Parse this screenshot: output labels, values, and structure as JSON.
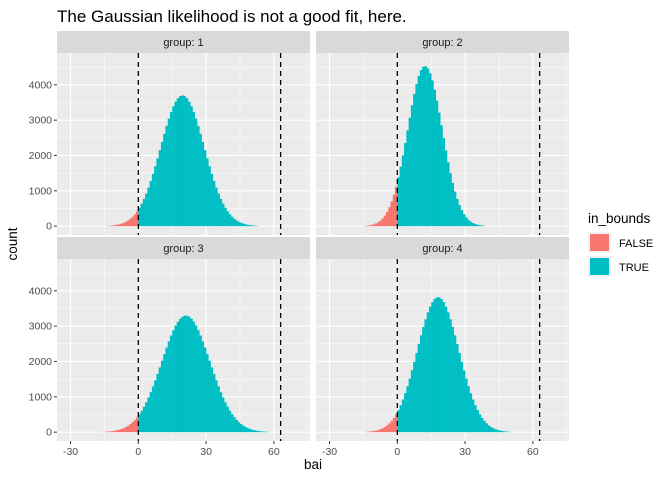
{
  "chart_data": {
    "type": "bar",
    "title": "The Gaussian likelihood is not a good fit, here.",
    "xlabel": "bai",
    "ylabel": "count",
    "xlim": [
      -36,
      76
    ],
    "ylim": [
      -250,
      4900
    ],
    "x_ticks": [
      -30,
      0,
      30,
      60
    ],
    "y_ticks": [
      0,
      1000,
      2000,
      3000,
      4000
    ],
    "bounds": [
      0,
      63
    ],
    "bin_width": 1,
    "legend": {
      "title": "in_bounds",
      "placement": "right",
      "entries": [
        {
          "label": "FALSE",
          "color": "#F8766D"
        },
        {
          "label": "TRUE",
          "color": "#00BFC4"
        }
      ]
    },
    "panels": [
      {
        "label": "group: 1",
        "mean": 19.5,
        "sd": 9.6,
        "peak": 3700,
        "x_range": [
          -19,
          58
        ]
      },
      {
        "label": "group: 2",
        "mean": 12.2,
        "sd": 7.6,
        "peak": 4530,
        "x_range": [
          -22,
          42
        ]
      },
      {
        "label": "group: 3",
        "mean": 21.0,
        "sd": 10.6,
        "peak": 3300,
        "x_range": [
          -20,
          62
        ]
      },
      {
        "label": "group: 4",
        "mean": 18.0,
        "sd": 9.2,
        "peak": 3820,
        "x_range": [
          -22,
          56
        ]
      }
    ]
  }
}
